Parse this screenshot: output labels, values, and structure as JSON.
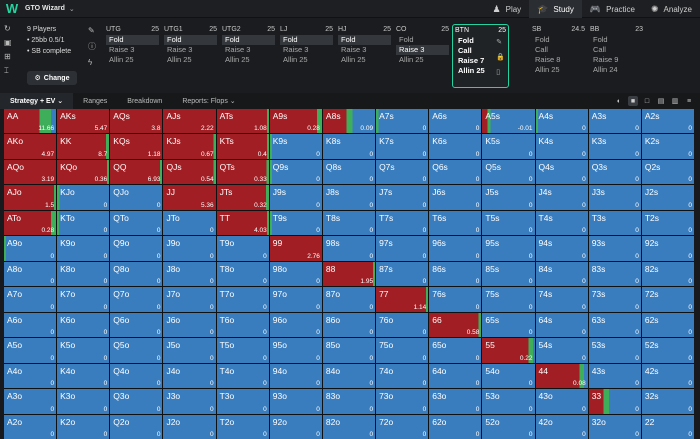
{
  "app": {
    "title": "GTO Wizard"
  },
  "nav": [
    {
      "label": "Play",
      "icon": "♟"
    },
    {
      "label": "Study",
      "icon": "🎓",
      "active": true
    },
    {
      "label": "Practice",
      "icon": "🎮"
    },
    {
      "label": "Analyze",
      "icon": "✺"
    }
  ],
  "game_info": {
    "players": "9 Players",
    "stakes": "• 25bb 0.5/1",
    "status": "• SB complete",
    "change_label": "Change"
  },
  "positions": [
    {
      "name": "UTG",
      "stack": "25",
      "options": [
        "Fold",
        "Raise 3",
        "Allin 25"
      ],
      "selected": 0
    },
    {
      "name": "UTG1",
      "stack": "25",
      "options": [
        "Fold",
        "Raise 3",
        "Allin 25"
      ],
      "selected": 0
    },
    {
      "name": "UTG2",
      "stack": "25",
      "options": [
        "Fold",
        "Raise 3",
        "Allin 25"
      ],
      "selected": 0
    },
    {
      "name": "LJ",
      "stack": "25",
      "options": [
        "Fold",
        "Raise 3",
        "Allin 25"
      ],
      "selected": 0
    },
    {
      "name": "HJ",
      "stack": "25",
      "options": [
        "Fold",
        "Raise 3",
        "Allin 25"
      ],
      "selected": 0
    },
    {
      "name": "CO",
      "stack": "25",
      "options": [
        "Fold",
        "Raise 3",
        "Allin 25"
      ],
      "selected": 1
    },
    {
      "name": "BTN",
      "stack": "25",
      "options": [
        "Fold",
        "Call",
        "Raise 7",
        "Allin 25"
      ],
      "selected": -1,
      "active": true
    },
    {
      "name": "SB",
      "stack": "24.5",
      "options": [
        "Fold",
        "Call",
        "Raise 8",
        "Allin 25"
      ],
      "selected": -1
    },
    {
      "name": "BB",
      "stack": "23",
      "options": [
        "Fold",
        "Call",
        "Raise 9",
        "Allin 24"
      ],
      "selected": -1
    }
  ],
  "tabs": [
    {
      "label": "Strategy + EV ⌄",
      "active": true
    },
    {
      "label": "Ranges"
    },
    {
      "label": "Breakdown"
    },
    {
      "label": "Reports: Flops ⌄"
    }
  ],
  "colors": {
    "fold": "#3a7dbe",
    "raise": "#a11f24",
    "allin": "#cc2a2a",
    "call": "#3fae5a",
    "accent": "#26d3a0"
  },
  "grid": [
    [
      {
        "h": "AA",
        "v": "11.66",
        "r": 0.68,
        "c": 0.22
      },
      {
        "h": "AKs",
        "v": "5.47",
        "r": 1,
        "c": 0
      },
      {
        "h": "AQs",
        "v": "3.8",
        "r": 1,
        "c": 0
      },
      {
        "h": "AJs",
        "v": "2.22",
        "r": 1,
        "c": 0
      },
      {
        "h": "ATs",
        "v": "1.08",
        "r": 0.96,
        "c": 0.04
      },
      {
        "h": "A9s",
        "v": "0.28",
        "r": 0.9,
        "c": 0.1
      },
      {
        "h": "A8s",
        "v": "0.09",
        "r": 0.45,
        "c": 0.12
      },
      {
        "h": "A7s",
        "v": "0",
        "r": 0,
        "c": 0.05
      },
      {
        "h": "A6s",
        "v": "0",
        "r": 0,
        "c": 0
      },
      {
        "h": "A5s",
        "v": "-0.01",
        "r": 0.1,
        "c": 0.06
      },
      {
        "h": "A4s",
        "v": "0",
        "r": 0,
        "c": 0.04
      },
      {
        "h": "A3s",
        "v": "0",
        "r": 0,
        "c": 0
      },
      {
        "h": "A2s",
        "v": "0",
        "r": 0,
        "c": 0
      }
    ],
    [
      {
        "h": "AKo",
        "v": "4.97",
        "r": 1,
        "c": 0
      },
      {
        "h": "KK",
        "v": "8.7",
        "r": 0.94,
        "c": 0.06
      },
      {
        "h": "KQs",
        "v": "1.18",
        "r": 1,
        "c": 0
      },
      {
        "h": "KJs",
        "v": "0.67",
        "r": 0.95,
        "c": 0.05
      },
      {
        "h": "KTs",
        "v": "0.4",
        "r": 0.96,
        "c": 0.04
      },
      {
        "h": "K9s",
        "v": "0",
        "r": 0,
        "c": 0.04
      },
      {
        "h": "K8s",
        "v": "0",
        "r": 0,
        "c": 0
      },
      {
        "h": "K7s",
        "v": "0",
        "r": 0,
        "c": 0
      },
      {
        "h": "K6s",
        "v": "0",
        "r": 0,
        "c": 0
      },
      {
        "h": "K5s",
        "v": "0",
        "r": 0,
        "c": 0
      },
      {
        "h": "K4s",
        "v": "0",
        "r": 0,
        "c": 0
      },
      {
        "h": "K3s",
        "v": "0",
        "r": 0,
        "c": 0
      },
      {
        "h": "K2s",
        "v": "0",
        "r": 0,
        "c": 0
      }
    ],
    [
      {
        "h": "AQo",
        "v": "3.19",
        "r": 1,
        "c": 0
      },
      {
        "h": "KQo",
        "v": "0.36",
        "r": 0.96,
        "c": 0.04
      },
      {
        "h": "QQ",
        "v": "6.93",
        "r": 0.96,
        "c": 0.04
      },
      {
        "h": "QJs",
        "v": "0.54",
        "r": 0.95,
        "c": 0.05
      },
      {
        "h": "QTs",
        "v": "0.33",
        "r": 0.95,
        "c": 0.05
      },
      {
        "h": "Q9s",
        "v": "0",
        "r": 0,
        "c": 0.04
      },
      {
        "h": "Q8s",
        "v": "0",
        "r": 0,
        "c": 0
      },
      {
        "h": "Q7s",
        "v": "0",
        "r": 0,
        "c": 0
      },
      {
        "h": "Q6s",
        "v": "0",
        "r": 0,
        "c": 0
      },
      {
        "h": "Q5s",
        "v": "0",
        "r": 0,
        "c": 0
      },
      {
        "h": "Q4s",
        "v": "0",
        "r": 0,
        "c": 0
      },
      {
        "h": "Q3s",
        "v": "0",
        "r": 0,
        "c": 0
      },
      {
        "h": "Q2s",
        "v": "0",
        "r": 0,
        "c": 0
      }
    ],
    [
      {
        "h": "AJo",
        "v": "1.5",
        "r": 0.96,
        "c": 0.04
      },
      {
        "h": "KJo",
        "v": "0",
        "r": 0,
        "c": 0.05
      },
      {
        "h": "QJo",
        "v": "0",
        "r": 0,
        "c": 0
      },
      {
        "h": "JJ",
        "v": "5.36",
        "r": 1,
        "c": 0
      },
      {
        "h": "JTs",
        "v": "0.32",
        "r": 0.94,
        "c": 0.06
      },
      {
        "h": "J9s",
        "v": "0",
        "r": 0,
        "c": 0
      },
      {
        "h": "J8s",
        "v": "0",
        "r": 0,
        "c": 0
      },
      {
        "h": "J7s",
        "v": "0",
        "r": 0,
        "c": 0
      },
      {
        "h": "J6s",
        "v": "0",
        "r": 0,
        "c": 0
      },
      {
        "h": "J5s",
        "v": "0",
        "r": 0,
        "c": 0
      },
      {
        "h": "J4s",
        "v": "0",
        "r": 0,
        "c": 0
      },
      {
        "h": "J3s",
        "v": "0",
        "r": 0,
        "c": 0
      },
      {
        "h": "J2s",
        "v": "0",
        "r": 0,
        "c": 0
      }
    ],
    [
      {
        "h": "ATo",
        "v": "0.28",
        "r": 0.9,
        "c": 0.1
      },
      {
        "h": "KTo",
        "v": "0",
        "r": 0,
        "c": 0.04
      },
      {
        "h": "QTo",
        "v": "0",
        "r": 0,
        "c": 0
      },
      {
        "h": "JTo",
        "v": "0",
        "r": 0,
        "c": 0
      },
      {
        "h": "TT",
        "v": "4.03",
        "r": 0.96,
        "c": 0.04
      },
      {
        "h": "T9s",
        "v": "0",
        "r": 0,
        "c": 0.04
      },
      {
        "h": "T8s",
        "v": "0",
        "r": 0,
        "c": 0
      },
      {
        "h": "T7s",
        "v": "0",
        "r": 0,
        "c": 0
      },
      {
        "h": "T6s",
        "v": "0",
        "r": 0,
        "c": 0
      },
      {
        "h": "T5s",
        "v": "0",
        "r": 0,
        "c": 0
      },
      {
        "h": "T4s",
        "v": "0",
        "r": 0,
        "c": 0
      },
      {
        "h": "T3s",
        "v": "0",
        "r": 0,
        "c": 0
      },
      {
        "h": "T2s",
        "v": "0",
        "r": 0,
        "c": 0
      }
    ],
    [
      {
        "h": "A9o",
        "v": "0",
        "r": 0,
        "c": 0.04
      },
      {
        "h": "K9o",
        "v": "0",
        "r": 0,
        "c": 0
      },
      {
        "h": "Q9o",
        "v": "0",
        "r": 0,
        "c": 0
      },
      {
        "h": "J9o",
        "v": "0",
        "r": 0,
        "c": 0
      },
      {
        "h": "T9o",
        "v": "0",
        "r": 0,
        "c": 0
      },
      {
        "h": "99",
        "v": "2.76",
        "r": 1,
        "c": 0
      },
      {
        "h": "98s",
        "v": "0",
        "r": 0,
        "c": 0
      },
      {
        "h": "97s",
        "v": "0",
        "r": 0,
        "c": 0
      },
      {
        "h": "96s",
        "v": "0",
        "r": 0,
        "c": 0
      },
      {
        "h": "95s",
        "v": "0",
        "r": 0,
        "c": 0
      },
      {
        "h": "94s",
        "v": "0",
        "r": 0,
        "c": 0
      },
      {
        "h": "93s",
        "v": "0",
        "r": 0,
        "c": 0
      },
      {
        "h": "92s",
        "v": "0",
        "r": 0,
        "c": 0
      }
    ],
    [
      {
        "h": "A8o",
        "v": "0",
        "r": 0,
        "c": 0
      },
      {
        "h": "K8o",
        "v": "0",
        "r": 0,
        "c": 0
      },
      {
        "h": "Q8o",
        "v": "0",
        "r": 0,
        "c": 0
      },
      {
        "h": "J8o",
        "v": "0",
        "r": 0,
        "c": 0
      },
      {
        "h": "T8o",
        "v": "0",
        "r": 0,
        "c": 0
      },
      {
        "h": "98o",
        "v": "0",
        "r": 0,
        "c": 0
      },
      {
        "h": "88",
        "v": "1.95",
        "r": 0.96,
        "c": 0.04
      },
      {
        "h": "87s",
        "v": "0",
        "r": 0,
        "c": 0
      },
      {
        "h": "86s",
        "v": "0",
        "r": 0,
        "c": 0
      },
      {
        "h": "85s",
        "v": "0",
        "r": 0,
        "c": 0
      },
      {
        "h": "84s",
        "v": "0",
        "r": 0,
        "c": 0
      },
      {
        "h": "83s",
        "v": "0",
        "r": 0,
        "c": 0
      },
      {
        "h": "82s",
        "v": "0",
        "r": 0,
        "c": 0
      }
    ],
    [
      {
        "h": "A7o",
        "v": "0",
        "r": 0,
        "c": 0
      },
      {
        "h": "K7o",
        "v": "0",
        "r": 0,
        "c": 0
      },
      {
        "h": "Q7o",
        "v": "0",
        "r": 0,
        "c": 0
      },
      {
        "h": "J7o",
        "v": "0",
        "r": 0,
        "c": 0
      },
      {
        "h": "T7o",
        "v": "0",
        "r": 0,
        "c": 0
      },
      {
        "h": "97o",
        "v": "0",
        "r": 0,
        "c": 0
      },
      {
        "h": "87o",
        "v": "0",
        "r": 0,
        "c": 0
      },
      {
        "h": "77",
        "v": "1.14",
        "r": 0.96,
        "c": 0.04
      },
      {
        "h": "76s",
        "v": "0",
        "r": 0,
        "c": 0
      },
      {
        "h": "75s",
        "v": "0",
        "r": 0,
        "c": 0
      },
      {
        "h": "74s",
        "v": "0",
        "r": 0,
        "c": 0
      },
      {
        "h": "73s",
        "v": "0",
        "r": 0,
        "c": 0
      },
      {
        "h": "72s",
        "v": "0",
        "r": 0,
        "c": 0
      }
    ],
    [
      {
        "h": "A6o",
        "v": "0",
        "r": 0,
        "c": 0
      },
      {
        "h": "K6o",
        "v": "0",
        "r": 0,
        "c": 0
      },
      {
        "h": "Q6o",
        "v": "0",
        "r": 0,
        "c": 0
      },
      {
        "h": "J6o",
        "v": "0",
        "r": 0,
        "c": 0
      },
      {
        "h": "T6o",
        "v": "0",
        "r": 0,
        "c": 0
      },
      {
        "h": "96o",
        "v": "0",
        "r": 0,
        "c": 0
      },
      {
        "h": "86o",
        "v": "0",
        "r": 0,
        "c": 0
      },
      {
        "h": "76o",
        "v": "0",
        "r": 0,
        "c": 0
      },
      {
        "h": "66",
        "v": "0.58",
        "r": 0.95,
        "c": 0.05
      },
      {
        "h": "65s",
        "v": "0",
        "r": 0,
        "c": 0
      },
      {
        "h": "64s",
        "v": "0",
        "r": 0,
        "c": 0
      },
      {
        "h": "63s",
        "v": "0",
        "r": 0,
        "c": 0
      },
      {
        "h": "62s",
        "v": "0",
        "r": 0,
        "c": 0
      }
    ],
    [
      {
        "h": "A5o",
        "v": "0",
        "r": 0,
        "c": 0
      },
      {
        "h": "K5o",
        "v": "0",
        "r": 0,
        "c": 0
      },
      {
        "h": "Q5o",
        "v": "0",
        "r": 0,
        "c": 0
      },
      {
        "h": "J5o",
        "v": "0",
        "r": 0,
        "c": 0
      },
      {
        "h": "T5o",
        "v": "0",
        "r": 0,
        "c": 0
      },
      {
        "h": "95o",
        "v": "0",
        "r": 0,
        "c": 0
      },
      {
        "h": "85o",
        "v": "0",
        "r": 0,
        "c": 0
      },
      {
        "h": "75o",
        "v": "0",
        "r": 0,
        "c": 0
      },
      {
        "h": "65o",
        "v": "0",
        "r": 0,
        "c": 0
      },
      {
        "h": "55",
        "v": "0.22",
        "r": 0.88,
        "c": 0.08
      },
      {
        "h": "54s",
        "v": "0",
        "r": 0,
        "c": 0
      },
      {
        "h": "53s",
        "v": "0",
        "r": 0,
        "c": 0
      },
      {
        "h": "52s",
        "v": "0",
        "r": 0,
        "c": 0
      }
    ],
    [
      {
        "h": "A4o",
        "v": "0",
        "r": 0,
        "c": 0
      },
      {
        "h": "K4o",
        "v": "0",
        "r": 0,
        "c": 0
      },
      {
        "h": "Q4o",
        "v": "0",
        "r": 0,
        "c": 0
      },
      {
        "h": "J4o",
        "v": "0",
        "r": 0,
        "c": 0
      },
      {
        "h": "T4o",
        "v": "0",
        "r": 0,
        "c": 0
      },
      {
        "h": "94o",
        "v": "0",
        "r": 0,
        "c": 0
      },
      {
        "h": "84o",
        "v": "0",
        "r": 0,
        "c": 0
      },
      {
        "h": "74o",
        "v": "0",
        "r": 0,
        "c": 0
      },
      {
        "h": "64o",
        "v": "0",
        "r": 0,
        "c": 0
      },
      {
        "h": "54o",
        "v": "0",
        "r": 0,
        "c": 0
      },
      {
        "h": "44",
        "v": "0.08",
        "r": 0.84,
        "c": 0.08
      },
      {
        "h": "43s",
        "v": "0",
        "r": 0,
        "c": 0
      },
      {
        "h": "42s",
        "v": "0",
        "r": 0,
        "c": 0
      }
    ],
    [
      {
        "h": "A3o",
        "v": "0",
        "r": 0,
        "c": 0
      },
      {
        "h": "K3o",
        "v": "0",
        "r": 0,
        "c": 0
      },
      {
        "h": "Q3o",
        "v": "0",
        "r": 0,
        "c": 0
      },
      {
        "h": "J3o",
        "v": "0",
        "r": 0,
        "c": 0
      },
      {
        "h": "T3o",
        "v": "0",
        "r": 0,
        "c": 0
      },
      {
        "h": "93o",
        "v": "0",
        "r": 0,
        "c": 0
      },
      {
        "h": "83o",
        "v": "0",
        "r": 0,
        "c": 0
      },
      {
        "h": "73o",
        "v": "0",
        "r": 0,
        "c": 0
      },
      {
        "h": "63o",
        "v": "0",
        "r": 0,
        "c": 0
      },
      {
        "h": "53o",
        "v": "0",
        "r": 0,
        "c": 0
      },
      {
        "h": "43o",
        "v": "0",
        "r": 0,
        "c": 0
      },
      {
        "h": "33",
        "v": "0",
        "r": 0.28,
        "c": 0.1
      },
      {
        "h": "32s",
        "v": "0",
        "r": 0,
        "c": 0
      }
    ],
    [
      {
        "h": "A2o",
        "v": "0",
        "r": 0,
        "c": 0
      },
      {
        "h": "K2o",
        "v": "0",
        "r": 0,
        "c": 0
      },
      {
        "h": "Q2o",
        "v": "0",
        "r": 0,
        "c": 0
      },
      {
        "h": "J2o",
        "v": "0",
        "r": 0,
        "c": 0
      },
      {
        "h": "T2o",
        "v": "0",
        "r": 0,
        "c": 0
      },
      {
        "h": "92o",
        "v": "0",
        "r": 0,
        "c": 0
      },
      {
        "h": "82o",
        "v": "0",
        "r": 0,
        "c": 0
      },
      {
        "h": "72o",
        "v": "0",
        "r": 0,
        "c": 0
      },
      {
        "h": "62o",
        "v": "0",
        "r": 0,
        "c": 0
      },
      {
        "h": "52o",
        "v": "0",
        "r": 0,
        "c": 0
      },
      {
        "h": "42o",
        "v": "0",
        "r": 0,
        "c": 0
      },
      {
        "h": "32o",
        "v": "0",
        "r": 0,
        "c": 0
      },
      {
        "h": "22",
        "v": "0",
        "r": 0,
        "c": 0
      }
    ]
  ]
}
